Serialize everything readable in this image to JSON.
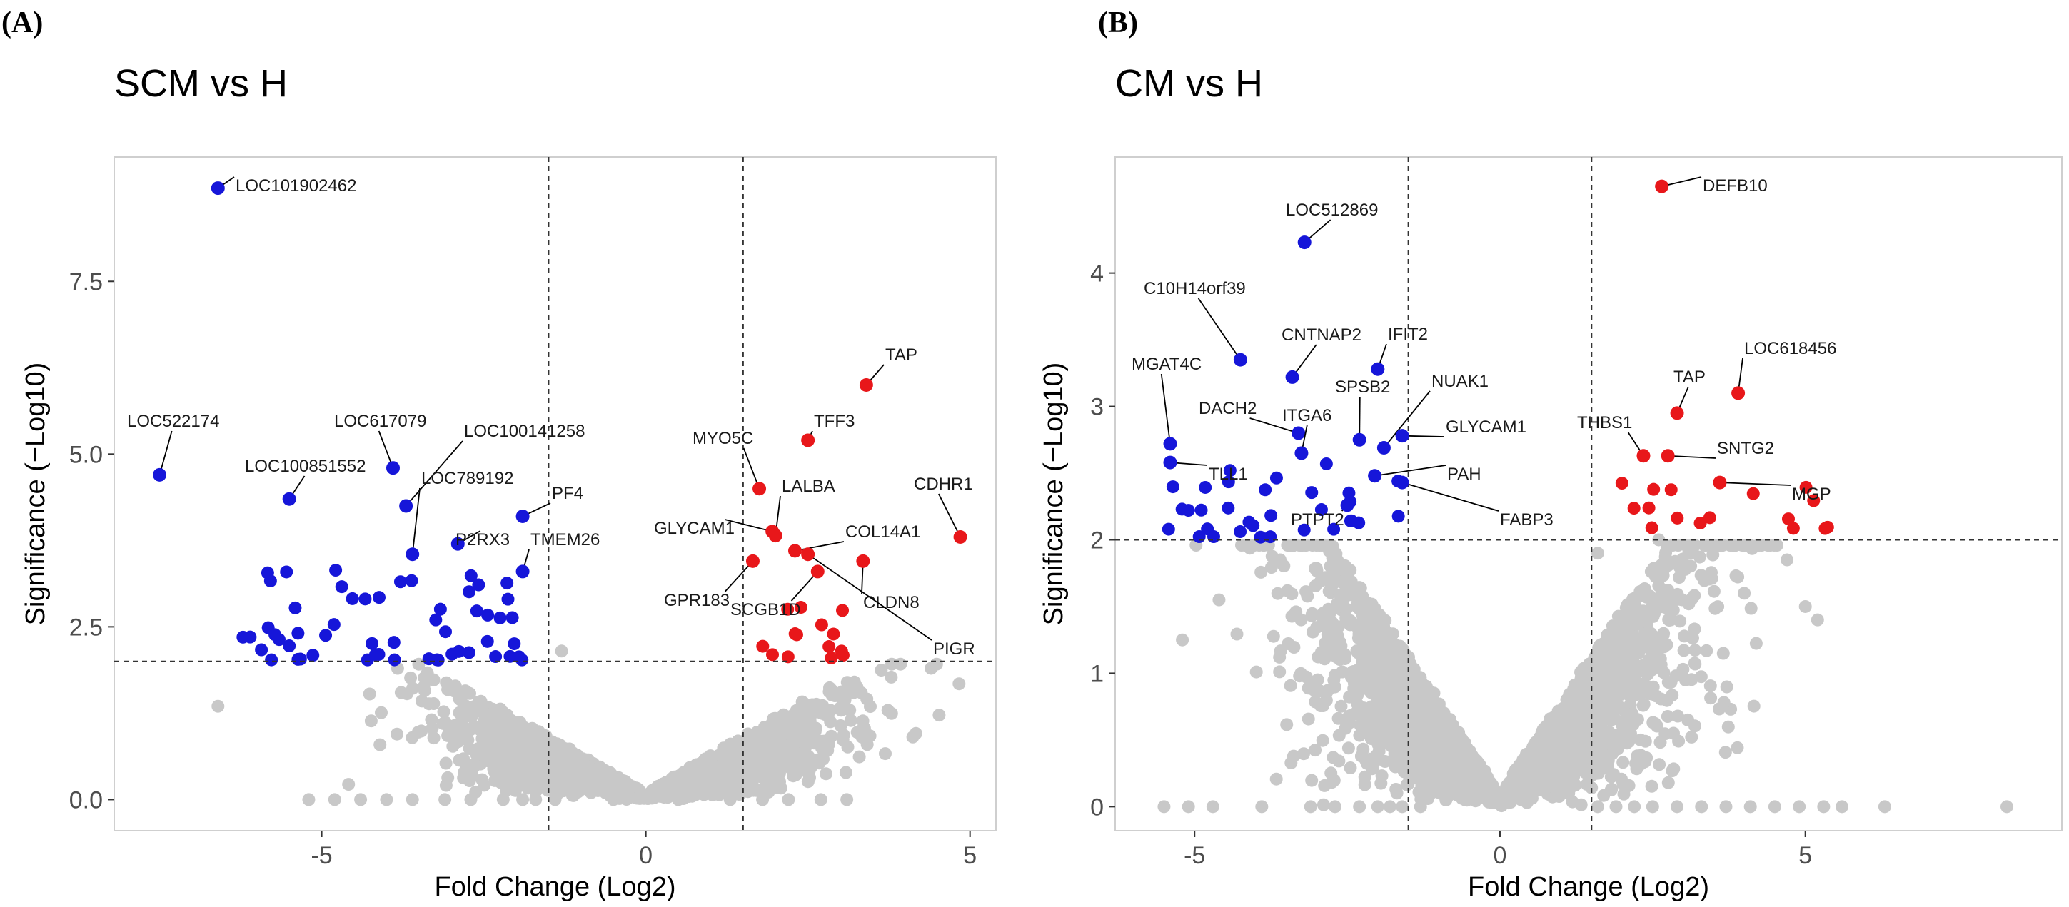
{
  "colors": {
    "up": "#e8171a",
    "down": "#1616d9",
    "ns": "#c8c8c8",
    "line": "#333333"
  },
  "chart_data": [
    {
      "type": "scatter",
      "panel_label": "(A)",
      "title": "SCM vs H",
      "xlabel": "Fold Change (Log2)",
      "ylabel": "Significance (−Log10)",
      "xlim": [
        -8.2,
        5.4
      ],
      "ylim": [
        -0.45,
        9.3
      ],
      "x_ticks": [
        -5,
        0,
        5
      ],
      "x_tick_labels": [
        "-5",
        "0",
        "5"
      ],
      "y_ticks": [
        0,
        2.5,
        5,
        7.5
      ],
      "y_tick_labels": [
        "0.0",
        "2.5",
        "5.0",
        "7.5"
      ],
      "fc_cutoff": 1.5,
      "p_cutoff": 2.0,
      "grid": false,
      "labeled_genes": [
        {
          "name": "LOC101902462",
          "x": -6.6,
          "y": 8.85,
          "dir": "down"
        },
        {
          "name": "LOC522174",
          "x": -7.5,
          "y": 4.7,
          "dir": "down"
        },
        {
          "name": "LOC617079",
          "x": -3.9,
          "y": 4.8,
          "dir": "down"
        },
        {
          "name": "LOC100851552",
          "x": -5.5,
          "y": 4.35,
          "dir": "down"
        },
        {
          "name": "LOC100141258",
          "x": -3.7,
          "y": 4.25,
          "dir": "down"
        },
        {
          "name": "LOC789192",
          "x": -3.6,
          "y": 3.55,
          "dir": "down"
        },
        {
          "name": "PF4",
          "x": -1.9,
          "y": 4.1,
          "dir": "down"
        },
        {
          "name": "P2RX3",
          "x": -2.9,
          "y": 3.7,
          "dir": "down"
        },
        {
          "name": "TMEM26",
          "x": -1.9,
          "y": 3.3,
          "dir": "down"
        },
        {
          "name": "TAP",
          "x": 3.4,
          "y": 6.0,
          "dir": "up"
        },
        {
          "name": "TFF3",
          "x": 2.5,
          "y": 5.2,
          "dir": "up"
        },
        {
          "name": "MYO5C",
          "x": 1.75,
          "y": 4.5,
          "dir": "up"
        },
        {
          "name": "LALBA",
          "x": 2.0,
          "y": 3.82,
          "dir": "up"
        },
        {
          "name": "GLYCAM1",
          "x": 1.95,
          "y": 3.88,
          "dir": "up"
        },
        {
          "name": "COL14A1",
          "x": 2.3,
          "y": 3.6,
          "dir": "up"
        },
        {
          "name": "CDHR1",
          "x": 4.85,
          "y": 3.8,
          "dir": "up"
        },
        {
          "name": "GPR183",
          "x": 1.65,
          "y": 3.45,
          "dir": "up"
        },
        {
          "name": "SCGB1D",
          "x": 2.65,
          "y": 3.3,
          "dir": "up"
        },
        {
          "name": "CLDN8",
          "x": 3.35,
          "y": 3.45,
          "dir": "up"
        },
        {
          "name": "PIGR",
          "x": 2.5,
          "y": 3.55,
          "dir": "up"
        }
      ]
    },
    {
      "type": "scatter",
      "panel_label": "(B)",
      "title": "CM vs H",
      "xlabel": "Fold Change (Log2)",
      "ylabel": "Significance (−Log10)",
      "xlim": [
        -6.3,
        9.2
      ],
      "ylim": [
        -0.18,
        4.87
      ],
      "x_ticks": [
        -5,
        0,
        5
      ],
      "x_tick_labels": [
        "-5",
        "0",
        "5"
      ],
      "y_ticks": [
        0,
        1,
        2,
        3,
        4
      ],
      "y_tick_labels": [
        "0",
        "1",
        "2",
        "3",
        "4"
      ],
      "fc_cutoff": 1.5,
      "p_cutoff": 2.0,
      "grid": false,
      "labeled_genes": [
        {
          "name": "DEFB10",
          "x": 2.65,
          "y": 4.65,
          "dir": "up"
        },
        {
          "name": "LOC512869",
          "x": -3.2,
          "y": 4.23,
          "dir": "down"
        },
        {
          "name": "C10H14orf39",
          "x": -4.25,
          "y": 3.35,
          "dir": "down"
        },
        {
          "name": "CNTNAP2",
          "x": -3.4,
          "y": 3.22,
          "dir": "down"
        },
        {
          "name": "IFIT2",
          "x": -2.0,
          "y": 3.28,
          "dir": "down"
        },
        {
          "name": "MGAT4C",
          "x": -5.4,
          "y": 2.72,
          "dir": "down"
        },
        {
          "name": "DACH2",
          "x": -3.3,
          "y": 2.8,
          "dir": "down"
        },
        {
          "name": "ITGA6",
          "x": -3.25,
          "y": 2.65,
          "dir": "down"
        },
        {
          "name": "SPSB2",
          "x": -2.3,
          "y": 2.75,
          "dir": "down"
        },
        {
          "name": "NUAK1",
          "x": -1.9,
          "y": 2.69,
          "dir": "down"
        },
        {
          "name": "GLYCAM1",
          "x": -1.6,
          "y": 2.78,
          "dir": "down"
        },
        {
          "name": "TLL1",
          "x": -5.4,
          "y": 2.58,
          "dir": "down"
        },
        {
          "name": "PAH",
          "x": -2.05,
          "y": 2.48,
          "dir": "down"
        },
        {
          "name": "FABP3",
          "x": -1.6,
          "y": 2.43,
          "dir": "down"
        },
        {
          "name": "PTPT2",
          "x": -2.5,
          "y": 2.26,
          "dir": "down"
        },
        {
          "name": "LOC618456",
          "x": 3.9,
          "y": 3.1,
          "dir": "up"
        },
        {
          "name": "TAP",
          "x": 2.9,
          "y": 2.95,
          "dir": "up"
        },
        {
          "name": "THBS1",
          "x": 2.35,
          "y": 2.63,
          "dir": "up"
        },
        {
          "name": "SNTG2",
          "x": 2.75,
          "y": 2.63,
          "dir": "up"
        },
        {
          "name": "MGP",
          "x": 3.6,
          "y": 2.43,
          "dir": "up"
        }
      ]
    }
  ]
}
